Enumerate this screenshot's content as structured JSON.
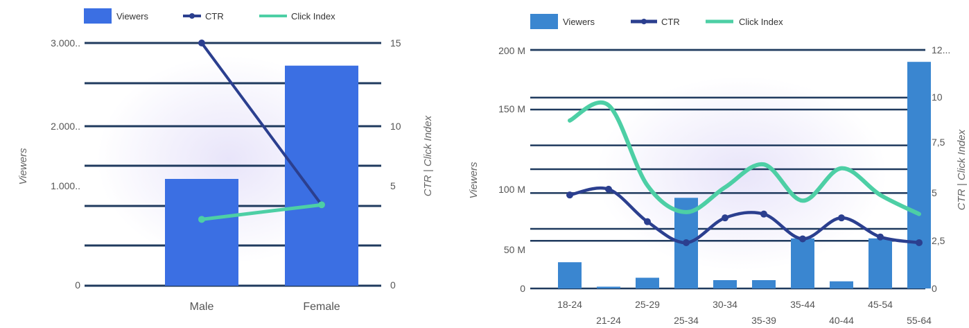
{
  "colors": {
    "viewers": "#3b6fe3",
    "viewers_right": "#3a86d0",
    "ctr": "#2b3f8f",
    "click_index": "#4dcfa5",
    "grid": "#1f3a5e"
  },
  "chart_data": [
    {
      "type": "bar",
      "legend": [
        "Viewers",
        "CTR",
        "Click Index"
      ],
      "categories": [
        "Male",
        "Female"
      ],
      "series": [
        {
          "name": "Viewers",
          "type": "bar",
          "axis": "left",
          "values": [
            1320,
            2720
          ]
        },
        {
          "name": "CTR",
          "type": "line",
          "axis": "right",
          "values": [
            15,
            5
          ]
        },
        {
          "name": "Click Index",
          "type": "line",
          "axis": "right",
          "values": [
            4.1,
            5
          ]
        }
      ],
      "ylabel": "Viewers",
      "y2label": "CTR | Click Index",
      "ylim": [
        0,
        3000
      ],
      "y2lim": [
        0,
        15
      ],
      "yticks": [
        "0",
        "1.000..",
        "2.000..",
        "3.000.."
      ],
      "y2ticks": [
        "0",
        "5",
        "10",
        "15"
      ]
    },
    {
      "type": "bar",
      "legend": [
        "Viewers",
        "CTR",
        "Click Index"
      ],
      "categories": [
        "18-24",
        "21-24",
        "25-29",
        "25-34",
        "30-34",
        "35-39",
        "35-44",
        "40-44",
        "45-54",
        "55-64"
      ],
      "series": [
        {
          "name": "Viewers",
          "type": "bar",
          "axis": "left",
          "values": [
            22000000,
            1500000,
            9000000,
            76000000,
            7000000,
            7000000,
            42000000,
            6000000,
            42000000,
            190000000
          ]
        },
        {
          "name": "CTR",
          "type": "line",
          "axis": "right",
          "values": [
            4.9,
            5.2,
            3.5,
            2.4,
            3.7,
            3.9,
            2.6,
            3.7,
            2.7,
            2.4
          ]
        },
        {
          "name": "Click Index",
          "type": "line",
          "axis": "right",
          "values": [
            8.8,
            9.6,
            5.4,
            4,
            5.3,
            6.5,
            4.6,
            6.3,
            4.9,
            3.9
          ]
        }
      ],
      "ylabel": "Viewers",
      "y2label": "CTR | Click Index",
      "ylim": [
        0,
        200000000
      ],
      "y2lim": [
        0,
        12.5
      ],
      "yticks": [
        "0",
        "50 M",
        "100 M",
        "150 M",
        "200 M"
      ],
      "y2ticks": [
        "0",
        "2,5",
        "5",
        "7,5",
        "10",
        "12..."
      ]
    }
  ]
}
